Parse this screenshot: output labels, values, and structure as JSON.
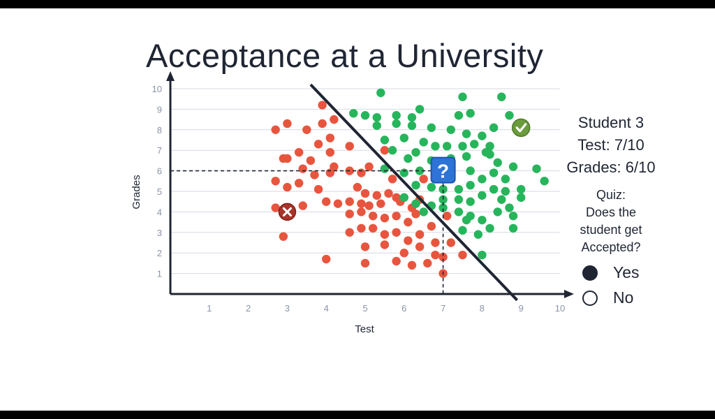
{
  "slide": {
    "title": "Acceptance at a University"
  },
  "student": {
    "name": "Student 3",
    "test": "Test: 7/10",
    "grades": "Grades: 6/10"
  },
  "quiz": {
    "heading": "Quiz:",
    "question_line1": "Does the",
    "question_line2": "student get",
    "question_line3": "Accepted?",
    "options": [
      {
        "label": "Yes",
        "selected": true
      },
      {
        "label": "No",
        "selected": false
      }
    ]
  },
  "chart_data": {
    "type": "scatter",
    "title": "Acceptance at a University",
    "xlabel": "Test",
    "ylabel": "Grades",
    "xlim": [
      0,
      10
    ],
    "ylim": [
      0,
      10
    ],
    "x_ticks": [
      "1",
      "2",
      "3",
      "4",
      "5",
      "6",
      "7",
      "8",
      "9",
      "10"
    ],
    "y_ticks": [
      "1",
      "2",
      "3",
      "4",
      "5",
      "6",
      "7",
      "8",
      "9",
      "10"
    ],
    "grid": "horizontal",
    "colors": {
      "rejected": "#e8553e",
      "accepted": "#27b55c",
      "boundary": "#1f2533",
      "axis": "#1f2533",
      "grid": "#d5d9e2"
    },
    "boundary_line": {
      "from": [
        3.6,
        10.2
      ],
      "to": [
        8.9,
        -0.3
      ]
    },
    "query_point": {
      "x": 7,
      "y": 6,
      "icon": "question-mark-icon",
      "label": "?"
    },
    "rejected_example": {
      "x": 3.0,
      "y": 4.0,
      "icon": "x-mark-icon"
    },
    "accepted_example": {
      "x": 9.0,
      "y": 8.1,
      "icon": "check-mark-icon"
    },
    "series": [
      {
        "name": "",
        "color": "#e8553e",
        "points": [
          [
            2.7,
            8.0
          ],
          [
            3.0,
            8.3
          ],
          [
            3.5,
            8.0
          ],
          [
            3.9,
            9.2
          ],
          [
            3.9,
            8.3
          ],
          [
            4.2,
            8.5
          ],
          [
            4.1,
            7.6
          ],
          [
            3.8,
            7.3
          ],
          [
            4.1,
            6.9
          ],
          [
            3.3,
            6.9
          ],
          [
            2.9,
            6.6
          ],
          [
            3.0,
            6.6
          ],
          [
            3.6,
            6.5
          ],
          [
            4.2,
            6.2
          ],
          [
            3.4,
            6.1
          ],
          [
            3.7,
            5.8
          ],
          [
            4.1,
            5.9
          ],
          [
            2.7,
            5.5
          ],
          [
            3.0,
            5.2
          ],
          [
            3.3,
            5.4
          ],
          [
            3.8,
            5.1
          ],
          [
            2.7,
            4.2
          ],
          [
            3.4,
            4.3
          ],
          [
            4.0,
            4.5
          ],
          [
            4.3,
            4.4
          ],
          [
            2.9,
            2.8
          ],
          [
            4.0,
            1.7
          ],
          [
            4.6,
            7.2
          ],
          [
            4.6,
            6.0
          ],
          [
            4.9,
            5.9
          ],
          [
            5.1,
            6.2
          ],
          [
            5.5,
            7.0
          ],
          [
            5.7,
            5.6
          ],
          [
            4.8,
            5.2
          ],
          [
            5.0,
            4.9
          ],
          [
            5.3,
            4.8
          ],
          [
            5.6,
            4.9
          ],
          [
            5.8,
            4.7
          ],
          [
            4.6,
            4.5
          ],
          [
            4.9,
            4.4
          ],
          [
            5.1,
            4.3
          ],
          [
            5.4,
            4.4
          ],
          [
            5.9,
            4.5
          ],
          [
            6.2,
            4.2
          ],
          [
            6.4,
            4.6
          ],
          [
            4.6,
            3.9
          ],
          [
            4.9,
            4.0
          ],
          [
            5.2,
            3.8
          ],
          [
            5.5,
            3.7
          ],
          [
            5.8,
            3.8
          ],
          [
            6.1,
            3.5
          ],
          [
            6.3,
            3.9
          ],
          [
            6.7,
            3.3
          ],
          [
            4.6,
            3.0
          ],
          [
            4.9,
            3.2
          ],
          [
            5.2,
            3.2
          ],
          [
            5.5,
            2.9
          ],
          [
            5.8,
            3.0
          ],
          [
            6.1,
            2.6
          ],
          [
            6.4,
            2.9
          ],
          [
            6.8,
            2.5
          ],
          [
            7.2,
            2.5
          ],
          [
            5.0,
            2.3
          ],
          [
            5.5,
            2.4
          ],
          [
            6.0,
            2.0
          ],
          [
            6.4,
            2.3
          ],
          [
            6.8,
            1.9
          ],
          [
            7.0,
            1.8
          ],
          [
            5.0,
            1.5
          ],
          [
            5.8,
            1.6
          ],
          [
            6.2,
            1.4
          ],
          [
            6.6,
            1.5
          ],
          [
            7.0,
            1.0
          ],
          [
            7.5,
            1.9
          ],
          [
            6.5,
            5.6
          ],
          [
            7.1,
            3.8
          ]
        ]
      },
      {
        "name": "",
        "color": "#27b55c",
        "points": [
          [
            5.4,
            9.8
          ],
          [
            6.4,
            9.0
          ],
          [
            7.5,
            9.6
          ],
          [
            8.5,
            9.6
          ],
          [
            4.7,
            8.8
          ],
          [
            5.0,
            8.7
          ],
          [
            5.3,
            8.6
          ],
          [
            5.8,
            8.7
          ],
          [
            6.2,
            8.6
          ],
          [
            7.4,
            8.7
          ],
          [
            7.7,
            8.8
          ],
          [
            8.7,
            8.7
          ],
          [
            5.3,
            8.2
          ],
          [
            5.8,
            8.3
          ],
          [
            6.2,
            8.2
          ],
          [
            6.7,
            8.1
          ],
          [
            7.2,
            8.0
          ],
          [
            7.6,
            7.8
          ],
          [
            8.0,
            7.7
          ],
          [
            8.3,
            8.1
          ],
          [
            5.5,
            7.5
          ],
          [
            6.0,
            7.6
          ],
          [
            6.5,
            7.4
          ],
          [
            6.8,
            7.2
          ],
          [
            7.1,
            7.2
          ],
          [
            7.5,
            7.2
          ],
          [
            7.8,
            7.3
          ],
          [
            8.2,
            7.2
          ],
          [
            8.2,
            6.8
          ],
          [
            5.7,
            7.0
          ],
          [
            6.1,
            6.6
          ],
          [
            6.3,
            6.9
          ],
          [
            6.7,
            6.5
          ],
          [
            7.2,
            6.6
          ],
          [
            7.6,
            6.7
          ],
          [
            8.1,
            6.9
          ],
          [
            8.4,
            6.4
          ],
          [
            8.8,
            6.2
          ],
          [
            9.4,
            6.1
          ],
          [
            9.6,
            5.5
          ],
          [
            5.5,
            6.1
          ],
          [
            6.0,
            5.9
          ],
          [
            6.4,
            6.0
          ],
          [
            7.2,
            6.0
          ],
          [
            7.7,
            6.0
          ],
          [
            8.3,
            5.9
          ],
          [
            8.6,
            5.6
          ],
          [
            6.3,
            5.3
          ],
          [
            6.7,
            5.2
          ],
          [
            7.0,
            5.1
          ],
          [
            7.4,
            5.1
          ],
          [
            7.7,
            5.3
          ],
          [
            8.0,
            5.6
          ],
          [
            8.3,
            5.1
          ],
          [
            8.6,
            5.0
          ],
          [
            9.0,
            5.1
          ],
          [
            9.0,
            4.7
          ],
          [
            6.0,
            4.7
          ],
          [
            6.3,
            4.4
          ],
          [
            6.7,
            4.3
          ],
          [
            7.0,
            4.6
          ],
          [
            7.4,
            4.6
          ],
          [
            7.7,
            4.5
          ],
          [
            8.0,
            4.8
          ],
          [
            8.5,
            4.6
          ],
          [
            8.7,
            4.2
          ],
          [
            6.5,
            4.0
          ],
          [
            7.0,
            4.2
          ],
          [
            7.4,
            4.0
          ],
          [
            7.7,
            3.8
          ],
          [
            8.0,
            3.6
          ],
          [
            8.4,
            4.0
          ],
          [
            8.8,
            3.8
          ],
          [
            7.6,
            3.6
          ],
          [
            8.2,
            3.2
          ],
          [
            8.8,
            3.2
          ],
          [
            7.5,
            3.1
          ],
          [
            7.9,
            2.9
          ],
          [
            8.0,
            1.9
          ]
        ]
      }
    ]
  }
}
